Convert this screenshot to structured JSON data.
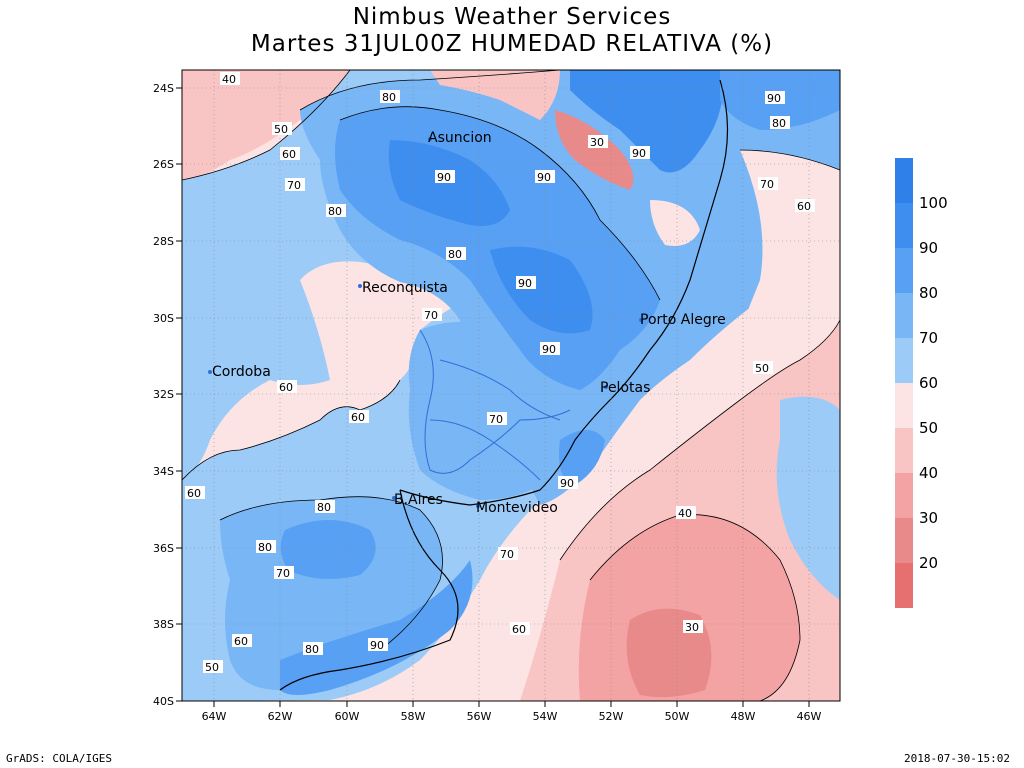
{
  "title_line1": "Nimbus Weather Services",
  "title_line2": "Martes 31JUL00Z HUMEDAD RELATIVA (%)",
  "footer_left": "GrADS: COLA/IGES",
  "footer_right": "2018-07-30-15:02",
  "map": {
    "lat_ticks": [
      "24S",
      "26S",
      "28S",
      "30S",
      "32S",
      "34S",
      "36S",
      "38S",
      "40S"
    ],
    "lon_ticks": [
      "64W",
      "62W",
      "60W",
      "58W",
      "56W",
      "54W",
      "52W",
      "50W",
      "48W",
      "46W"
    ],
    "cities": [
      {
        "name": "Asuncion",
        "lon": -57.6,
        "lat": -25.3
      },
      {
        "name": "Reconquista",
        "lon": -59.7,
        "lat": -29.2
      },
      {
        "name": "Cordoba",
        "lon": -64.2,
        "lat": -31.4
      },
      {
        "name": "Porto Alegre",
        "lon": -51.2,
        "lat": -30.0
      },
      {
        "name": "Pelotas",
        "lon": -52.3,
        "lat": -31.8
      },
      {
        "name": "B.Aires",
        "lon": -58.4,
        "lat": -34.6
      },
      {
        "name": "Montevideo",
        "lon": -56.2,
        "lat": -34.9
      }
    ],
    "contour_labels": [
      "40",
      "50",
      "60",
      "70",
      "80",
      "90",
      "30"
    ]
  },
  "legend": {
    "labels": [
      "100",
      "90",
      "80",
      "70",
      "60",
      "50",
      "40",
      "30",
      "20"
    ],
    "colors": [
      "#2f80e8",
      "#3e8ef0",
      "#57a0f3",
      "#79b6f5",
      "#9ccbf8",
      "#fce4e4",
      "#f8c4c4",
      "#f3a3a3",
      "#e98a8a",
      "#e66f6f"
    ]
  }
}
